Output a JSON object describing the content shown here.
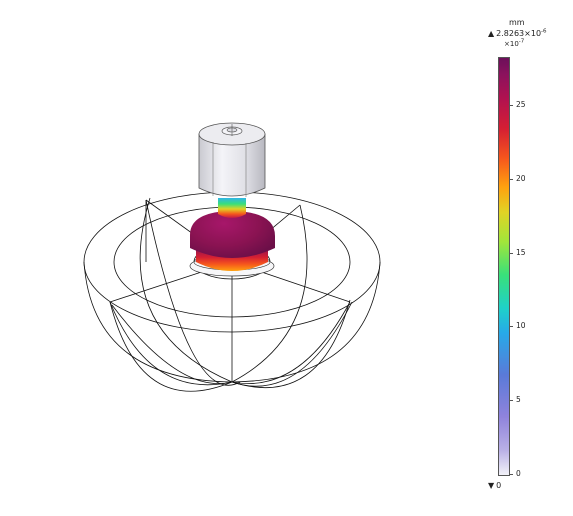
{
  "legend": {
    "unit": "mm",
    "max_prefix": "2.8263×10",
    "max_exp": "-6",
    "scale_prefix": "×10",
    "scale_exp": "-7",
    "min_value": "0",
    "max_value": 28.263,
    "ticks": [
      {
        "label": "25",
        "value": 25
      },
      {
        "label": "20",
        "value": 20
      },
      {
        "label": "15",
        "value": 15
      },
      {
        "label": "10",
        "value": 10
      },
      {
        "label": "5",
        "value": 5
      },
      {
        "label": "0",
        "value": 0
      }
    ]
  },
  "colors": {
    "colormap": [
      "#f2f2f8",
      "#8f83dc",
      "#27a9e8",
      "#39e07a",
      "#e0d325",
      "#ffa20f",
      "#d51f33",
      "#8c125d",
      "#6c0f5a"
    ],
    "model_top": "#e4e4ea",
    "model_body": "#8a1450",
    "wireframe": "#000000"
  }
}
